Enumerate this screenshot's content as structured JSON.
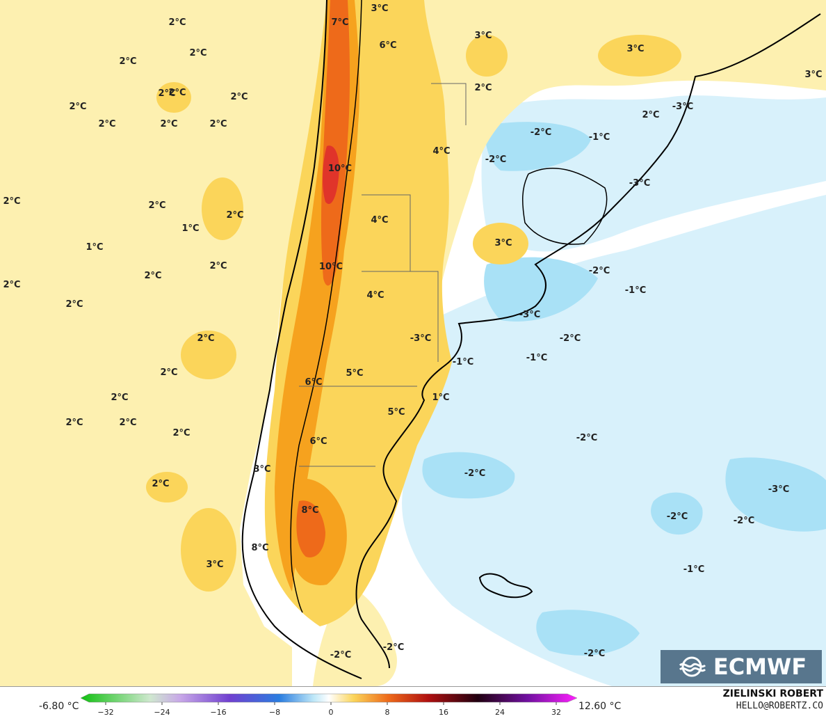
{
  "map": {
    "labels": [
      "2°C",
      "2°C",
      "2°C",
      "2°C",
      "2°C",
      "2°C",
      "2°C",
      "2°C",
      "2°C",
      "2°C",
      "2°C",
      "1°C",
      "2°C",
      "2°C",
      "2°C",
      "2°C",
      "2°C",
      "2°C",
      "2°C",
      "2°C",
      "2°C",
      "2°C",
      "2°C",
      "2°C",
      "3°C",
      "7°C",
      "3°C",
      "6°C",
      "10°C",
      "4°C",
      "10°C",
      "4°C",
      "6°C",
      "5°C",
      "6°C",
      "3°C",
      "8°C",
      "8°C",
      "3°C",
      "3°C",
      "3°C",
      "2°C",
      "4°C",
      "3°C",
      "-3°C",
      "5°C",
      "-1°C",
      "1°C",
      "2°C",
      "-3°C",
      "-2°C",
      "-1°C",
      "-2°C",
      "-3°C",
      "-2°C",
      "-1°C",
      "-3°C",
      "-2°C",
      "-1°C",
      "-2°C",
      "-2°C",
      "-2°C",
      "-3°C",
      "-2°C",
      "-2°C",
      "-1°C",
      "-2°C",
      "-2°C",
      "1°C",
      "2°C"
    ],
    "colors": {
      "ocean_neutral": "#ffffff",
      "warm_1": "#fdf0b0",
      "warm_2": "#fbd55a",
      "warm_3": "#f6a21e",
      "warm_4": "#ee6a1a",
      "warm_5": "#e0342a",
      "cool_1": "#d8f1fb",
      "cool_2": "#a9e1f6",
      "coast": "#000000"
    }
  },
  "logo": {
    "text": "ECMWF",
    "icon": "ecmwf-wave-icon"
  },
  "legend": {
    "min_label": "-6.80 °C",
    "max_label": "12.60 °C",
    "ticks": [
      "−32",
      "−24",
      "−16",
      "−8",
      "0",
      "8",
      "16",
      "24",
      "32"
    ]
  },
  "credit": {
    "author": "ZIELINSKI ROBERT",
    "email": "HELLO@ROBERTZ.CO"
  }
}
